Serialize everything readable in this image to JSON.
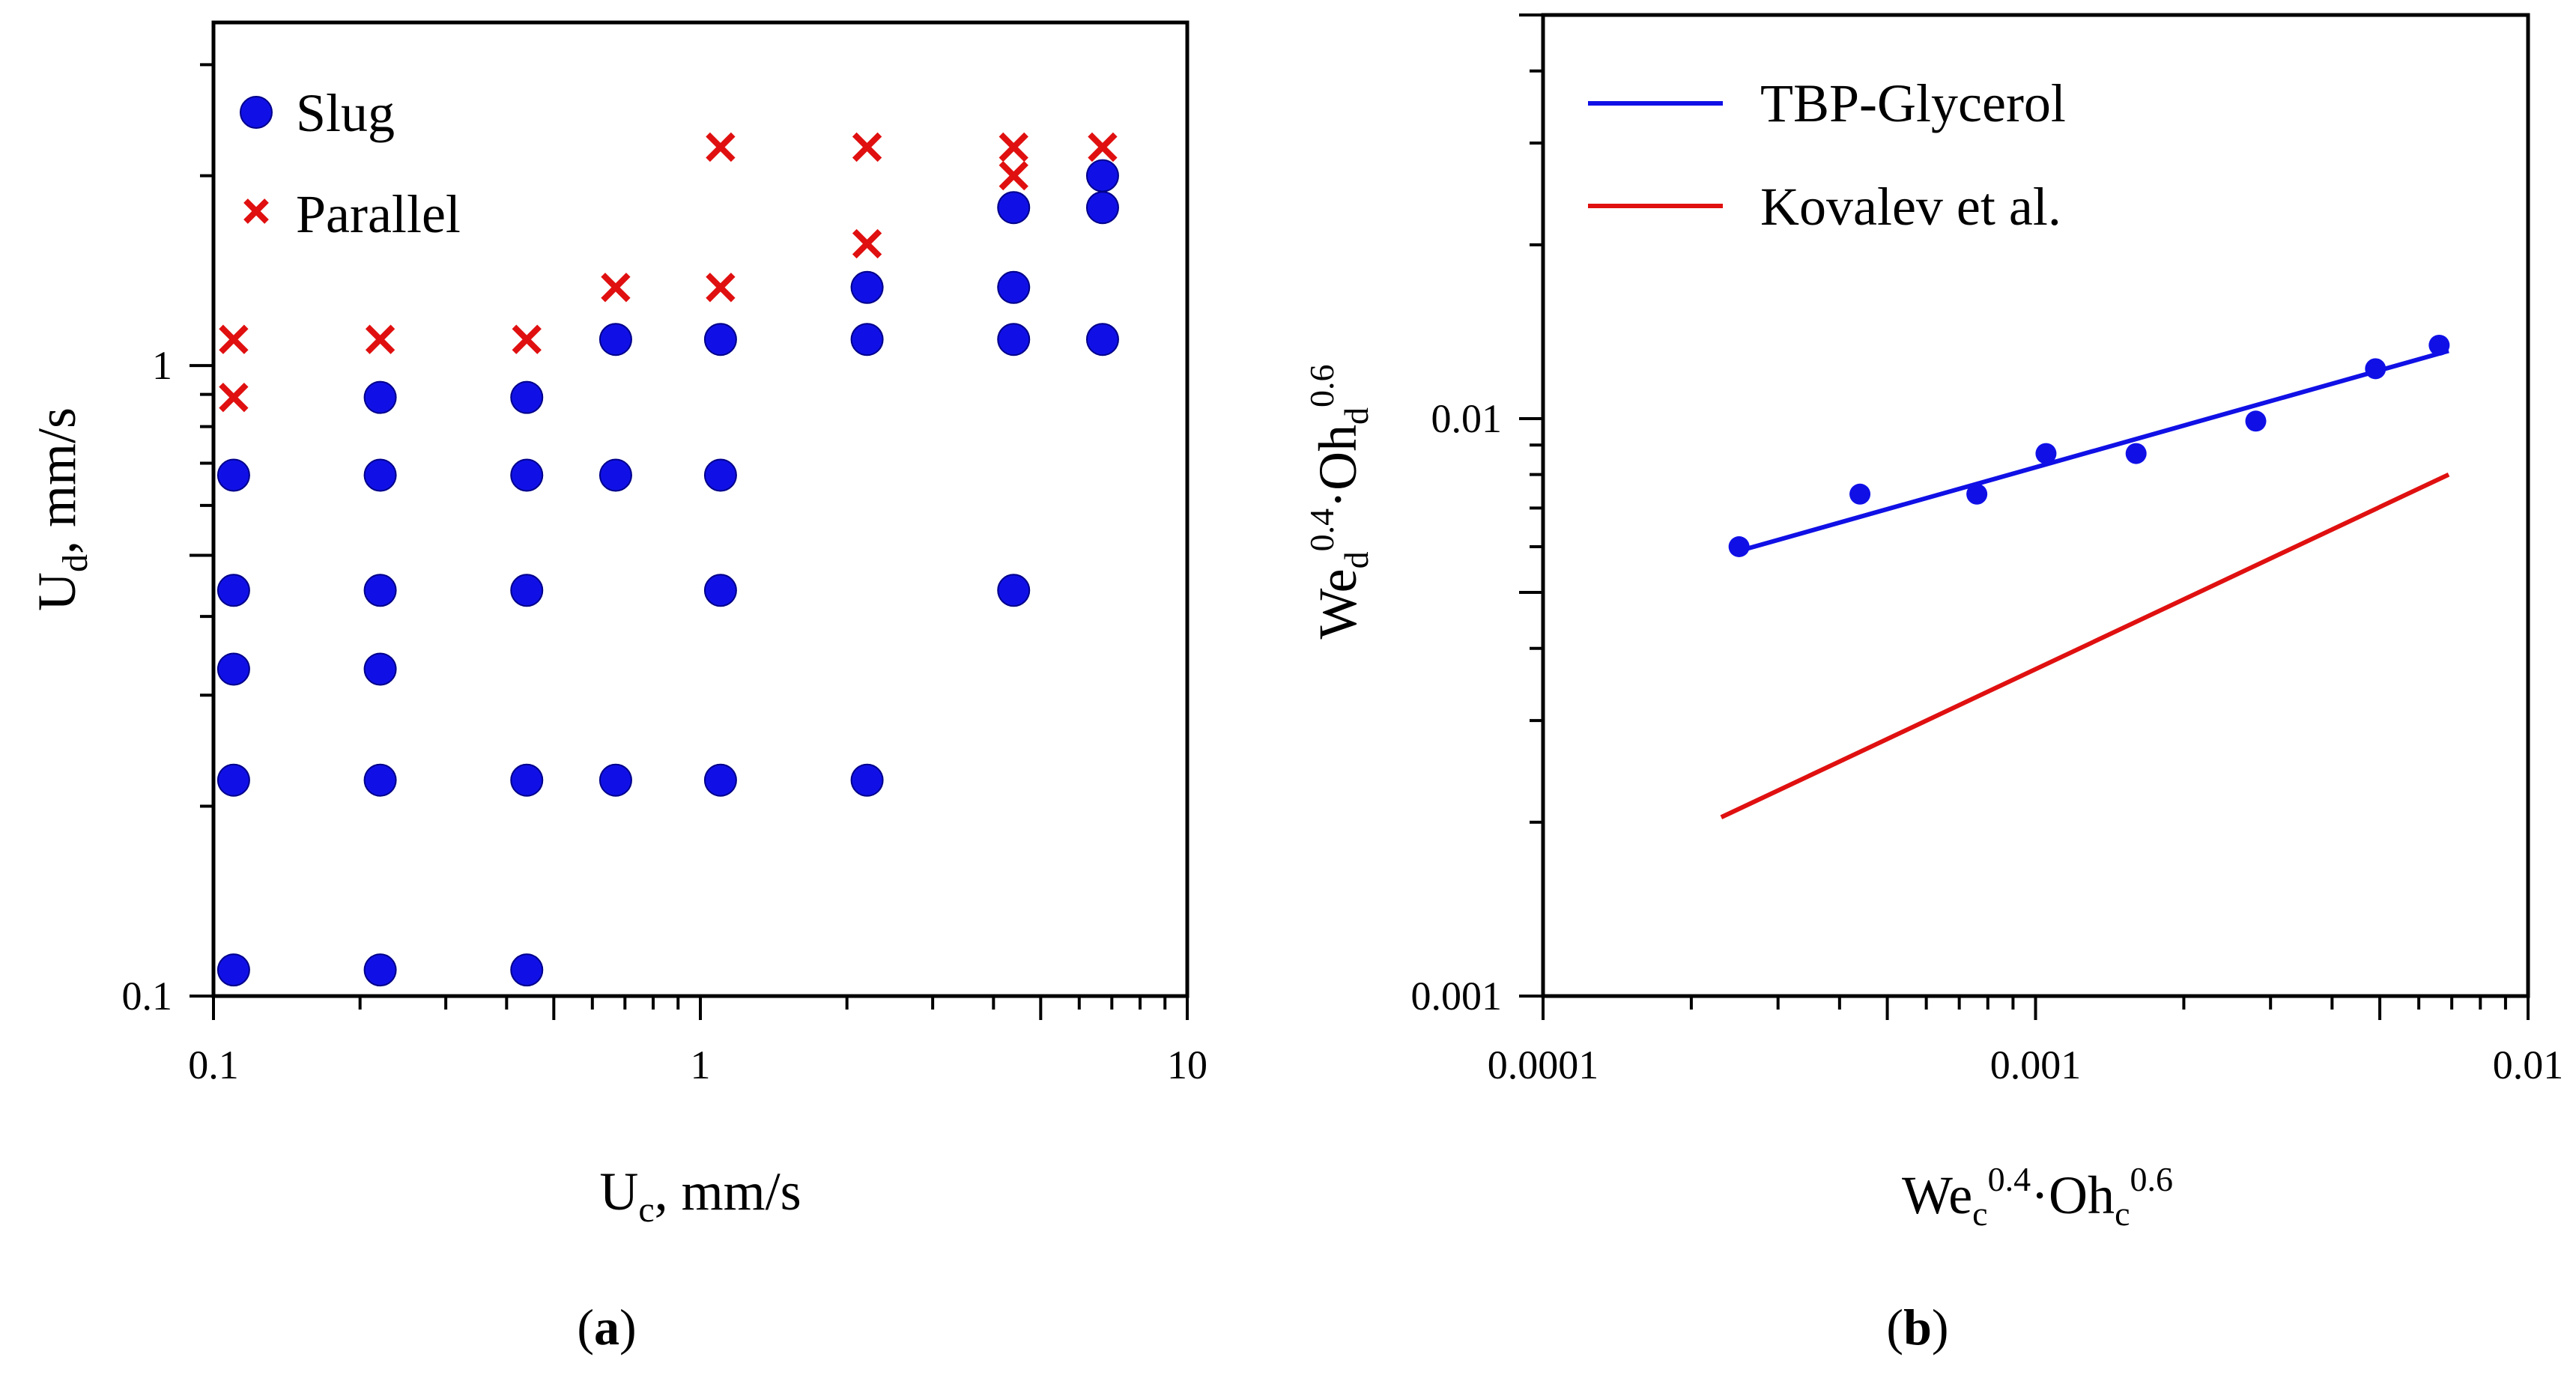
{
  "chart_data": [
    {
      "type": "scatter",
      "panel_label": "a",
      "xscale": "log",
      "yscale": "log",
      "xlim": [
        0.1,
        10
      ],
      "ylim": [
        0.1,
        3.5
      ],
      "xlabel": {
        "base": "U",
        "sub": "c",
        "rest": ", mm/s"
      },
      "ylabel": {
        "base": "U",
        "sub": "d",
        "rest": ", mm/s"
      },
      "x_ticks": [
        {
          "value": 0.1,
          "label": "0.1"
        },
        {
          "value": 1,
          "label": "1"
        },
        {
          "value": 10,
          "label": "10"
        }
      ],
      "y_ticks": [
        {
          "value": 0.1,
          "label": "0.1"
        },
        {
          "value": 1,
          "label": "1"
        }
      ],
      "legend_position": "top-left",
      "series": [
        {
          "name": "Slug",
          "marker": "circle",
          "color": "#1010e6",
          "points": [
            [
              0.11,
              0.11
            ],
            [
              0.22,
              0.11
            ],
            [
              0.44,
              0.11
            ],
            [
              0.11,
              0.22
            ],
            [
              0.22,
              0.22
            ],
            [
              0.44,
              0.22
            ],
            [
              0.67,
              0.22
            ],
            [
              1.1,
              0.22
            ],
            [
              2.2,
              0.22
            ],
            [
              0.11,
              0.33
            ],
            [
              0.22,
              0.33
            ],
            [
              0.11,
              0.44
            ],
            [
              0.22,
              0.44
            ],
            [
              0.44,
              0.44
            ],
            [
              1.1,
              0.44
            ],
            [
              4.4,
              0.44
            ],
            [
              0.11,
              0.67
            ],
            [
              0.22,
              0.67
            ],
            [
              0.44,
              0.67
            ],
            [
              0.67,
              0.67
            ],
            [
              1.1,
              0.67
            ],
            [
              0.22,
              0.89
            ],
            [
              0.44,
              0.89
            ],
            [
              0.67,
              1.1
            ],
            [
              1.1,
              1.1
            ],
            [
              2.2,
              1.1
            ],
            [
              4.4,
              1.1
            ],
            [
              6.7,
              1.1
            ],
            [
              2.2,
              1.33
            ],
            [
              4.4,
              1.33
            ],
            [
              4.4,
              1.78
            ],
            [
              6.7,
              1.78
            ],
            [
              6.7,
              2.0
            ]
          ]
        },
        {
          "name": "Parallel",
          "marker": "x",
          "color": "#e01010",
          "points": [
            [
              0.11,
              0.89
            ],
            [
              0.11,
              1.1
            ],
            [
              0.22,
              1.1
            ],
            [
              0.44,
              1.1
            ],
            [
              0.67,
              1.33
            ],
            [
              1.1,
              1.33
            ],
            [
              1.1,
              2.22
            ],
            [
              2.2,
              1.56
            ],
            [
              2.2,
              2.22
            ],
            [
              4.4,
              2.0
            ],
            [
              4.4,
              2.22
            ],
            [
              6.7,
              2.22
            ]
          ]
        }
      ]
    },
    {
      "type": "line",
      "panel_label": "b",
      "xscale": "log",
      "yscale": "log",
      "xlim": [
        0.0001,
        0.01
      ],
      "ylim": [
        0.001,
        0.05
      ],
      "xlabel": {
        "base": "We",
        "sub": "c",
        "sup1": "0.4",
        "mid": "·Oh",
        "sub2": "c",
        "sup2": "0.6"
      },
      "ylabel": {
        "base": "We",
        "sub": "d",
        "sup1": "0.4",
        "mid": "·Oh",
        "sub2": "d",
        "sup2": "0.6"
      },
      "x_ticks": [
        {
          "value": 0.0001,
          "label": "0.0001"
        },
        {
          "value": 0.001,
          "label": "0.001"
        },
        {
          "value": 0.01,
          "label": "0.01"
        }
      ],
      "y_ticks": [
        {
          "value": 0.001,
          "label": "0.001"
        },
        {
          "value": 0.01,
          "label": "0.01"
        }
      ],
      "legend_position": "top-left",
      "series": [
        {
          "name": "TBP-Glycerol",
          "color": "#1010e6",
          "line": [
            [
              0.00025,
              0.0059
            ],
            [
              0.0069,
              0.0131
            ]
          ],
          "points": [
            [
              0.00025,
              0.006
            ],
            [
              0.00044,
              0.0074
            ],
            [
              0.00076,
              0.0074
            ],
            [
              0.00105,
              0.0087
            ],
            [
              0.0016,
              0.0087
            ],
            [
              0.0028,
              0.0099
            ],
            [
              0.0049,
              0.0122
            ],
            [
              0.0066,
              0.0134
            ]
          ]
        },
        {
          "name": "Kovalev et al.",
          "color": "#e01010",
          "line": [
            [
              0.00023,
              0.00204
            ],
            [
              0.0069,
              0.008
            ]
          ]
        }
      ]
    }
  ]
}
